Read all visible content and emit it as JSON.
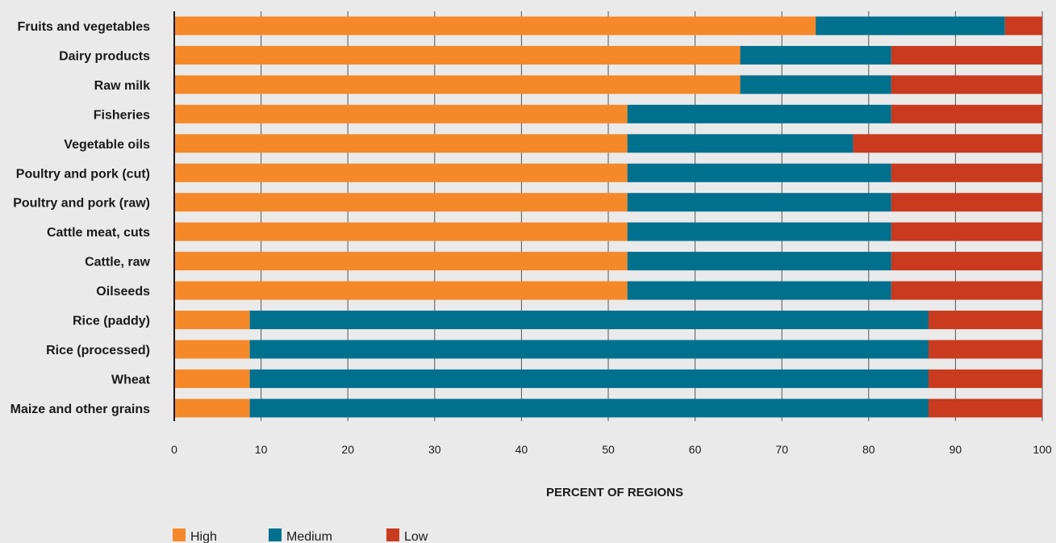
{
  "chart_data": {
    "type": "bar",
    "orientation": "horizontal",
    "stacked": true,
    "categories": [
      "Fruits and vegetables",
      "Dairy products",
      "Raw milk",
      "Fisheries",
      "Vegetable oils",
      "Poultry and pork (cut)",
      "Poultry and pork (raw)",
      "Cattle meat, cuts",
      "Cattle, raw",
      "Oilseeds",
      "Rice (paddy)",
      "Rice (processed)",
      "Wheat",
      "Maize and other grains"
    ],
    "series": [
      {
        "name": "High",
        "color": "#f5892a",
        "values": [
          73.9,
          65.2,
          65.2,
          52.2,
          52.2,
          52.2,
          52.2,
          52.2,
          52.2,
          52.2,
          8.7,
          8.7,
          8.7,
          8.7
        ]
      },
      {
        "name": "Medium",
        "color": "#00708f",
        "values": [
          21.8,
          17.4,
          17.4,
          30.4,
          26.0,
          30.4,
          30.4,
          30.4,
          30.4,
          30.4,
          78.2,
          78.2,
          78.2,
          78.2
        ]
      },
      {
        "name": "Low",
        "color": "#c93a1f",
        "values": [
          4.3,
          17.4,
          17.4,
          17.4,
          21.8,
          17.4,
          17.4,
          17.4,
          17.4,
          17.4,
          13.1,
          13.1,
          13.1,
          13.1
        ]
      }
    ],
    "xlabel": "PERCENT OF REGIONS",
    "xlim": [
      0,
      100
    ],
    "xticks": [
      0,
      10,
      20,
      30,
      40,
      50,
      60,
      70,
      80,
      90,
      100
    ],
    "grid": true,
    "legend_position": "bottom-left"
  }
}
